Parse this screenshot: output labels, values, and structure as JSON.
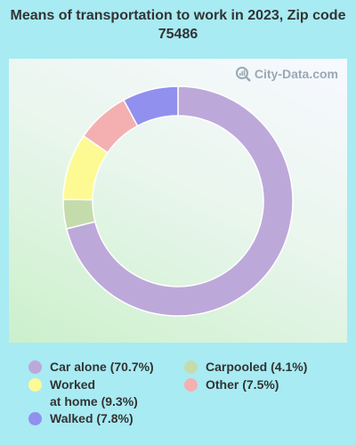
{
  "title": "Means of transportation to work in 2023, Zip code 75486",
  "watermark": "City-Data.com",
  "chart_data": {
    "type": "pie",
    "donut": true,
    "title": "Means of transportation to work in 2023, Zip code 75486",
    "legend_position": "bottom",
    "series": [
      {
        "name": "Car alone",
        "value": 70.7,
        "label": "Car alone (70.7%)",
        "color": "#bda8da"
      },
      {
        "name": "Carpooled",
        "value": 4.1,
        "label": "Carpooled (4.1%)",
        "color": "#c4dcab"
      },
      {
        "name": "Worked at home",
        "value": 9.3,
        "label": "Worked\nat home (9.3%)",
        "color": "#fdfa94"
      },
      {
        "name": "Other",
        "value": 7.5,
        "label": "Other (7.5%)",
        "color": "#f4b0b0"
      },
      {
        "name": "Walked",
        "value": 7.8,
        "label": "Walked (7.8%)",
        "color": "#9190ef"
      }
    ]
  }
}
